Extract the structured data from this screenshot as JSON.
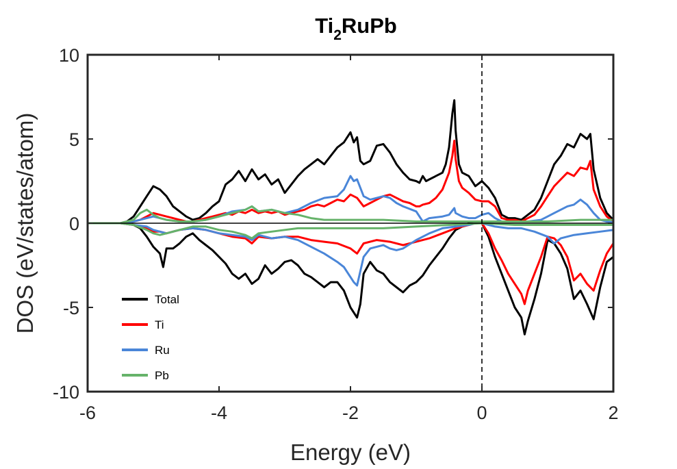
{
  "chart_data": {
    "type": "line",
    "title": {
      "main": "Ti",
      "sub": "2",
      "rest": "RuPb"
    },
    "xlabel": "Energy (eV)",
    "ylabel": "DOS (eV/states/atom)",
    "xlim": [
      -6,
      2
    ],
    "ylim": [
      -10,
      10
    ],
    "xticks": [
      -6,
      -4,
      -2,
      0,
      2
    ],
    "yticks": [
      -10,
      -5,
      0,
      5,
      10
    ],
    "xtick_labels": [
      "-6",
      "-4",
      "-2",
      "0",
      "2"
    ],
    "ytick_labels": [
      "-10",
      "-5",
      "0",
      "5",
      "10"
    ],
    "grid": false,
    "legend_position": "lower-left",
    "fermi_level": 0,
    "colors": {
      "Total": "#000000",
      "Ti": "#ff0000",
      "Ru": "#4a86d8",
      "Pb": "#66b36a"
    },
    "series": [
      {
        "name": "Total",
        "spin_up": {
          "x": [
            -6,
            -5.5,
            -5.4,
            -5.3,
            -5.2,
            -5.1,
            -5.0,
            -4.9,
            -4.8,
            -4.7,
            -4.6,
            -4.5,
            -4.4,
            -4.3,
            -4.2,
            -4.1,
            -4.0,
            -3.9,
            -3.8,
            -3.7,
            -3.6,
            -3.5,
            -3.4,
            -3.3,
            -3.2,
            -3.1,
            -3.0,
            -2.9,
            -2.8,
            -2.7,
            -2.6,
            -2.5,
            -2.4,
            -2.3,
            -2.2,
            -2.1,
            -2.0,
            -1.95,
            -1.9,
            -1.85,
            -1.8,
            -1.7,
            -1.6,
            -1.5,
            -1.4,
            -1.3,
            -1.2,
            -1.1,
            -1.0,
            -0.95,
            -0.9,
            -0.85,
            -0.8,
            -0.7,
            -0.6,
            -0.55,
            -0.5,
            -0.45,
            -0.42,
            -0.4,
            -0.35,
            -0.3,
            -0.2,
            -0.1,
            0.0,
            0.1,
            0.2,
            0.3,
            0.4,
            0.5,
            0.6,
            0.7,
            0.8,
            0.9,
            1.0,
            1.1,
            1.2,
            1.3,
            1.4,
            1.5,
            1.6,
            1.65,
            1.7,
            1.8,
            1.9,
            2.0
          ],
          "y": [
            0,
            0,
            0.1,
            0.4,
            1.0,
            1.6,
            2.2,
            2.0,
            1.6,
            1.0,
            0.7,
            0.4,
            0.2,
            0.3,
            0.6,
            1.0,
            1.3,
            2.3,
            2.6,
            3.1,
            2.5,
            3.2,
            2.6,
            2.9,
            2.3,
            2.6,
            1.8,
            2.3,
            2.8,
            3.2,
            3.5,
            3.8,
            3.5,
            4.0,
            4.5,
            4.8,
            5.4,
            4.8,
            5.1,
            3.7,
            3.5,
            3.7,
            4.6,
            4.7,
            4.2,
            3.5,
            3.0,
            2.6,
            2.5,
            2.4,
            2.8,
            2.5,
            2.6,
            2.8,
            3.0,
            3.5,
            4.5,
            6.5,
            7.3,
            5.5,
            3.5,
            3.0,
            2.8,
            2.2,
            2.5,
            2.1,
            1.5,
            0.5,
            0.3,
            0.3,
            0.2,
            0.5,
            0.8,
            1.5,
            2.5,
            3.5,
            4.0,
            4.7,
            4.5,
            5.3,
            5.0,
            5.3,
            3.2,
            1.5,
            0.6,
            0.2
          ]
        },
        "spin_down": {
          "x": [
            -6,
            -5.5,
            -5.4,
            -5.3,
            -5.2,
            -5.1,
            -5.0,
            -4.9,
            -4.85,
            -4.8,
            -4.7,
            -4.6,
            -4.5,
            -4.4,
            -4.3,
            -4.2,
            -4.1,
            -4.0,
            -3.9,
            -3.8,
            -3.7,
            -3.6,
            -3.5,
            -3.4,
            -3.3,
            -3.2,
            -3.1,
            -3.0,
            -2.9,
            -2.8,
            -2.7,
            -2.6,
            -2.5,
            -2.4,
            -2.3,
            -2.2,
            -2.1,
            -2.0,
            -1.95,
            -1.9,
            -1.85,
            -1.8,
            -1.7,
            -1.6,
            -1.5,
            -1.4,
            -1.3,
            -1.2,
            -1.1,
            -1.0,
            -0.9,
            -0.8,
            -0.7,
            -0.6,
            -0.5,
            -0.4,
            -0.3,
            -0.2,
            -0.1,
            0.0,
            0.1,
            0.2,
            0.3,
            0.4,
            0.5,
            0.6,
            0.65,
            0.7,
            0.8,
            0.9,
            1.0,
            1.1,
            1.2,
            1.3,
            1.4,
            1.5,
            1.6,
            1.7,
            1.8,
            1.9,
            2.0
          ],
          "y": [
            0,
            0,
            0,
            -0.1,
            -0.3,
            -0.8,
            -1.4,
            -1.8,
            -2.6,
            -1.5,
            -1.5,
            -1.2,
            -0.8,
            -0.6,
            -1.0,
            -1.3,
            -1.6,
            -2.0,
            -2.4,
            -3.0,
            -3.3,
            -3.0,
            -3.6,
            -3.3,
            -2.5,
            -3.0,
            -2.7,
            -2.3,
            -2.2,
            -2.5,
            -3.0,
            -3.2,
            -3.5,
            -3.8,
            -3.5,
            -3.5,
            -4.0,
            -5.0,
            -5.3,
            -5.6,
            -4.8,
            -3.0,
            -2.3,
            -2.8,
            -3.0,
            -3.5,
            -3.8,
            -4.1,
            -3.7,
            -3.5,
            -3.1,
            -2.5,
            -2.0,
            -1.5,
            -0.9,
            -0.4,
            -0.2,
            0,
            0,
            0,
            -0.8,
            -2.0,
            -3.0,
            -4.0,
            -5.0,
            -5.6,
            -6.6,
            -5.8,
            -4.5,
            -3.0,
            -1.0,
            -1.2,
            -1.8,
            -2.7,
            -4.5,
            -4.0,
            -4.8,
            -5.7,
            -3.8,
            -2.3,
            -2.0
          ]
        }
      },
      {
        "name": "Ti",
        "spin_up": {
          "x": [
            -6,
            -5.5,
            -5.4,
            -5.3,
            -5.2,
            -5.1,
            -5.0,
            -4.9,
            -4.8,
            -4.7,
            -4.6,
            -4.5,
            -4.4,
            -4.3,
            -4.2,
            -4.1,
            -4.0,
            -3.9,
            -3.8,
            -3.7,
            -3.6,
            -3.5,
            -3.4,
            -3.3,
            -3.2,
            -3.1,
            -3.0,
            -2.9,
            -2.8,
            -2.7,
            -2.6,
            -2.5,
            -2.4,
            -2.3,
            -2.2,
            -2.1,
            -2.0,
            -1.9,
            -1.8,
            -1.7,
            -1.6,
            -1.5,
            -1.4,
            -1.3,
            -1.2,
            -1.1,
            -1.0,
            -0.95,
            -0.9,
            -0.8,
            -0.7,
            -0.6,
            -0.5,
            -0.45,
            -0.42,
            -0.4,
            -0.35,
            -0.3,
            -0.2,
            -0.1,
            0.0,
            0.1,
            0.2,
            0.3,
            0.4,
            0.5,
            0.6,
            0.7,
            0.8,
            0.9,
            1.0,
            1.1,
            1.2,
            1.3,
            1.4,
            1.5,
            1.6,
            1.65,
            1.7,
            1.8,
            1.9,
            2.0
          ],
          "y": [
            0,
            0,
            0,
            0.1,
            0.2,
            0.4,
            0.6,
            0.5,
            0.4,
            0.3,
            0.2,
            0.1,
            0.1,
            0.2,
            0.3,
            0.4,
            0.5,
            0.6,
            0.5,
            0.7,
            0.6,
            0.8,
            0.6,
            0.7,
            0.6,
            0.7,
            0.5,
            0.6,
            0.7,
            0.8,
            1.0,
            1.1,
            1.0,
            1.2,
            1.4,
            1.3,
            1.7,
            1.5,
            1.0,
            1.2,
            1.4,
            1.6,
            1.7,
            1.5,
            1.3,
            1.2,
            1.0,
            1.0,
            1.1,
            1.2,
            1.5,
            2.0,
            3.0,
            4.0,
            4.9,
            3.8,
            2.5,
            2.1,
            1.8,
            1.4,
            1.3,
            1.3,
            1.0,
            0.3,
            0.2,
            0.2,
            0.1,
            0.3,
            0.5,
            1.0,
            1.6,
            2.2,
            2.6,
            3.0,
            2.8,
            3.3,
            3.2,
            3.7,
            2.0,
            1.0,
            0.4,
            0.1
          ]
        },
        "spin_down": {
          "x": [
            -6,
            -5.5,
            -5.3,
            -5.1,
            -5.0,
            -4.9,
            -4.8,
            -4.6,
            -4.4,
            -4.2,
            -4.0,
            -3.8,
            -3.6,
            -3.5,
            -3.4,
            -3.2,
            -3.0,
            -2.8,
            -2.6,
            -2.4,
            -2.2,
            -2.0,
            -1.9,
            -1.8,
            -1.6,
            -1.4,
            -1.2,
            -1.0,
            -0.8,
            -0.6,
            -0.4,
            -0.2,
            -0.1,
            0.0,
            0.1,
            0.2,
            0.3,
            0.4,
            0.5,
            0.6,
            0.65,
            0.7,
            0.8,
            0.9,
            1.0,
            1.1,
            1.2,
            1.3,
            1.4,
            1.5,
            1.6,
            1.7,
            1.8,
            1.9,
            2.0
          ],
          "y": [
            0,
            0,
            -0.1,
            -0.3,
            -0.5,
            -0.5,
            -0.6,
            -0.4,
            -0.3,
            -0.4,
            -0.6,
            -0.8,
            -0.9,
            -1.2,
            -0.8,
            -0.9,
            -0.8,
            -0.8,
            -1.0,
            -1.1,
            -1.2,
            -1.5,
            -1.8,
            -1.2,
            -1.0,
            -1.1,
            -1.3,
            -1.1,
            -0.9,
            -0.6,
            -0.3,
            -0.1,
            0,
            0,
            -0.6,
            -1.5,
            -2.2,
            -3.0,
            -3.6,
            -4.2,
            -4.8,
            -4.0,
            -3.0,
            -2.0,
            -0.8,
            -0.9,
            -1.3,
            -2.0,
            -3.4,
            -3.0,
            -3.6,
            -4.0,
            -2.8,
            -1.8,
            -1.2
          ]
        }
      },
      {
        "name": "Ru",
        "spin_up": {
          "x": [
            -6,
            -5.5,
            -5.3,
            -5.1,
            -5.0,
            -4.9,
            -4.8,
            -4.6,
            -4.4,
            -4.2,
            -4.0,
            -3.8,
            -3.6,
            -3.5,
            -3.4,
            -3.2,
            -3.0,
            -2.8,
            -2.6,
            -2.4,
            -2.2,
            -2.1,
            -2.0,
            -1.95,
            -1.9,
            -1.8,
            -1.7,
            -1.6,
            -1.5,
            -1.4,
            -1.3,
            -1.2,
            -1.0,
            -0.9,
            -0.8,
            -0.6,
            -0.5,
            -0.42,
            -0.4,
            -0.3,
            -0.2,
            -0.1,
            0.0,
            0.1,
            0.2,
            0.3,
            0.5,
            0.7,
            0.9,
            1.0,
            1.1,
            1.2,
            1.3,
            1.4,
            1.5,
            1.6,
            1.7,
            1.8,
            1.9,
            2.0
          ],
          "y": [
            0,
            0,
            0.1,
            0.3,
            0.4,
            0.3,
            0.2,
            0.1,
            0.1,
            0.2,
            0.4,
            0.7,
            0.8,
            1.0,
            0.7,
            0.8,
            0.6,
            0.8,
            1.2,
            1.5,
            1.6,
            2.0,
            2.8,
            2.5,
            2.6,
            1.6,
            1.4,
            1.5,
            1.6,
            1.5,
            1.2,
            1.0,
            0.7,
            0.1,
            0.3,
            0.4,
            0.5,
            0.9,
            0.6,
            0.4,
            0.3,
            0.3,
            0.5,
            0.6,
            0.3,
            0.1,
            0.1,
            0.1,
            0.2,
            0.4,
            0.6,
            0.8,
            1.0,
            1.1,
            1.4,
            1.1,
            0.6,
            0.2,
            0.1,
            0.05
          ]
        },
        "spin_down": {
          "x": [
            -6,
            -5.5,
            -5.3,
            -5.1,
            -5.0,
            -4.9,
            -4.8,
            -4.6,
            -4.4,
            -4.2,
            -4.0,
            -3.8,
            -3.6,
            -3.5,
            -3.4,
            -3.2,
            -3.0,
            -2.8,
            -2.6,
            -2.4,
            -2.2,
            -2.1,
            -2.0,
            -1.95,
            -1.9,
            -1.8,
            -1.7,
            -1.6,
            -1.5,
            -1.4,
            -1.3,
            -1.2,
            -1.0,
            -0.8,
            -0.6,
            -0.4,
            -0.2,
            -0.1,
            0.0,
            0.2,
            0.4,
            0.6,
            0.8,
            1.0,
            1.1,
            1.2,
            1.4,
            1.6,
            1.8,
            2.0
          ],
          "y": [
            0,
            0,
            -0.1,
            -0.2,
            -0.4,
            -0.5,
            -0.6,
            -0.4,
            -0.3,
            -0.4,
            -0.6,
            -0.7,
            -0.8,
            -1.0,
            -0.7,
            -0.9,
            -0.8,
            -1.0,
            -1.4,
            -1.8,
            -2.3,
            -2.6,
            -3.2,
            -3.5,
            -3.7,
            -2.0,
            -1.5,
            -1.4,
            -1.3,
            -1.5,
            -1.6,
            -1.5,
            -1.0,
            -0.6,
            -0.3,
            -0.2,
            -0.1,
            0,
            0,
            -0.2,
            -0.3,
            -0.3,
            -0.5,
            -0.8,
            -1.2,
            -0.9,
            -0.7,
            -0.6,
            -0.5,
            -0.4
          ]
        }
      },
      {
        "name": "Pb",
        "spin_up": {
          "x": [
            -6,
            -5.5,
            -5.3,
            -5.2,
            -5.1,
            -5.0,
            -4.9,
            -4.8,
            -4.6,
            -4.4,
            -4.2,
            -4.0,
            -3.8,
            -3.6,
            -3.5,
            -3.4,
            -3.2,
            -3.0,
            -2.8,
            -2.6,
            -2.4,
            -2.2,
            -2.0,
            -1.5,
            -1.0,
            -0.5,
            0.0,
            0.5,
            1.0,
            1.5,
            2.0
          ],
          "y": [
            0,
            0,
            0.2,
            0.6,
            0.8,
            0.5,
            0.3,
            0.2,
            0.1,
            0.1,
            0.2,
            0.4,
            0.6,
            0.8,
            1.0,
            0.7,
            0.8,
            0.6,
            0.5,
            0.3,
            0.2,
            0.2,
            0.2,
            0.2,
            0.1,
            0.1,
            0.1,
            0.1,
            0.1,
            0.2,
            0.2
          ]
        },
        "spin_down": {
          "x": [
            -6,
            -5.5,
            -5.3,
            -5.1,
            -5.0,
            -4.9,
            -4.8,
            -4.6,
            -4.4,
            -4.2,
            -4.0,
            -3.8,
            -3.6,
            -3.5,
            -3.4,
            -3.2,
            -3.0,
            -2.8,
            -2.5,
            -2.0,
            -1.5,
            -1.0,
            -0.5,
            0.0,
            0.5,
            1.0,
            1.5,
            2.0
          ],
          "y": [
            0,
            0,
            -0.1,
            -0.4,
            -0.6,
            -0.7,
            -0.6,
            -0.4,
            -0.2,
            -0.2,
            -0.4,
            -0.5,
            -0.7,
            -0.9,
            -0.6,
            -0.5,
            -0.4,
            -0.3,
            -0.3,
            -0.3,
            -0.3,
            -0.2,
            -0.1,
            0,
            -0.1,
            -0.1,
            -0.1,
            -0.1
          ]
        }
      }
    ]
  }
}
